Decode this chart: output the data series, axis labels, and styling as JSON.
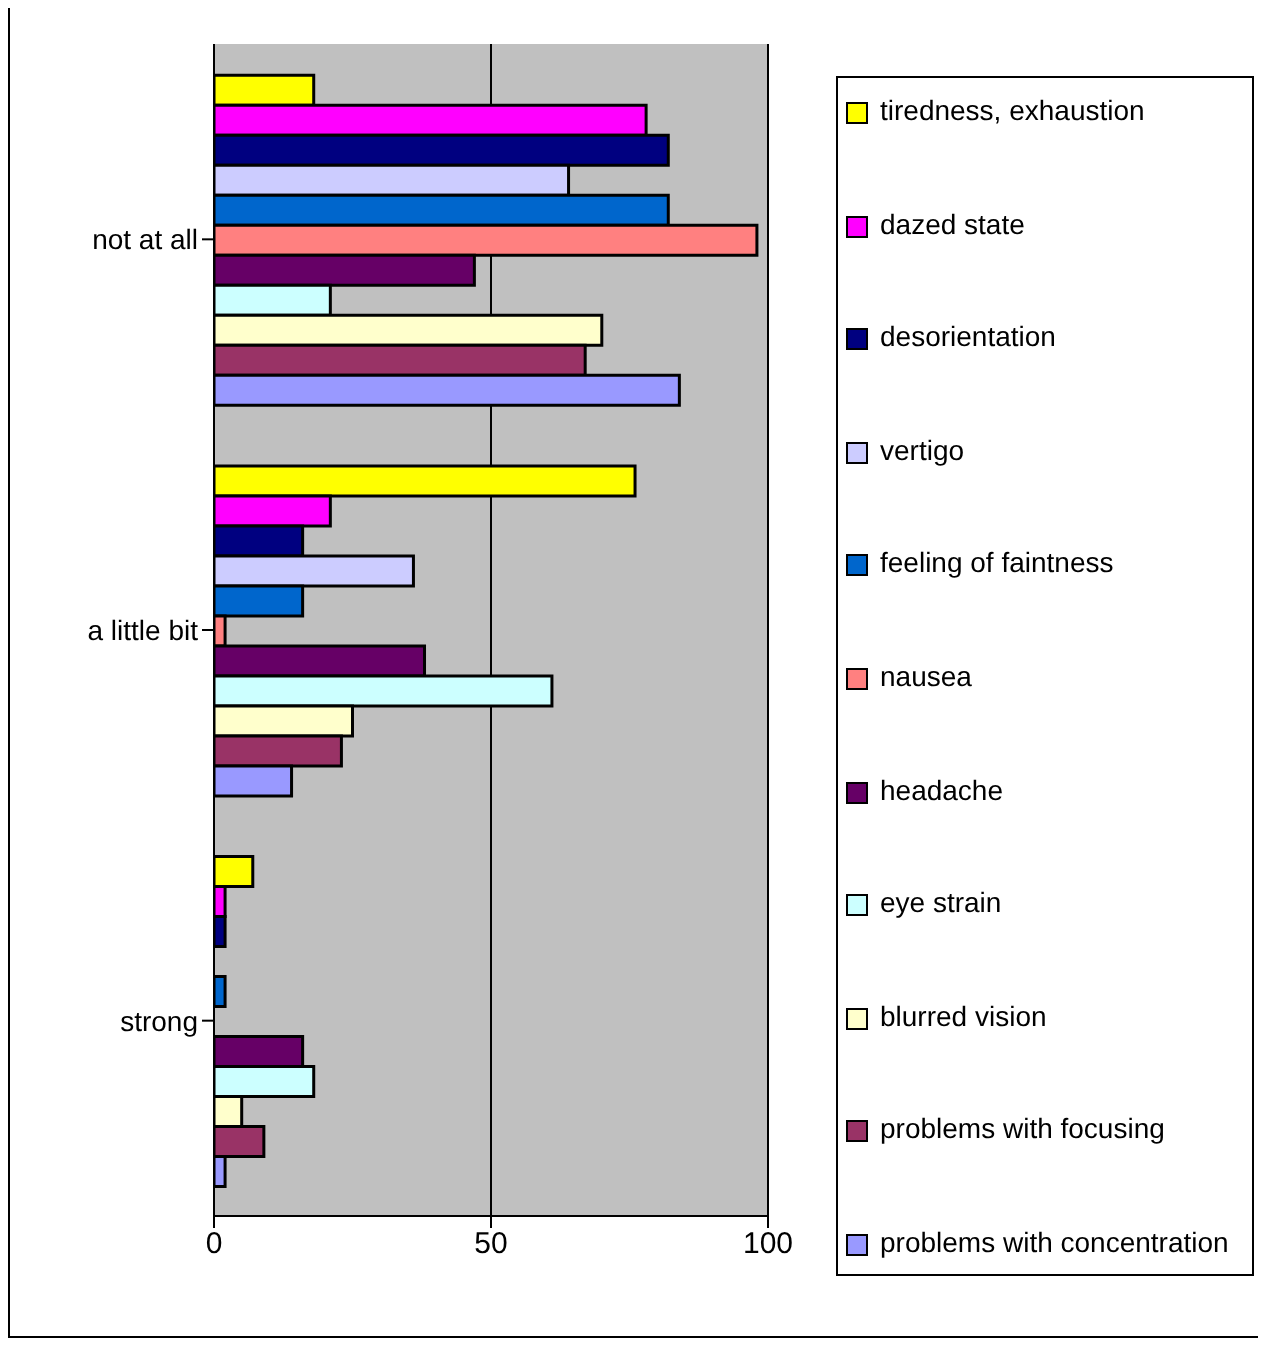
{
  "chart_data": {
    "type": "bar",
    "orientation": "horizontal",
    "categories": [
      "not at all",
      "a little bit",
      "strong"
    ],
    "series": [
      {
        "name": "tiredness, exhaustion",
        "color": "#ffff00",
        "values": [
          18,
          76,
          7
        ]
      },
      {
        "name": "dazed state",
        "color": "#ff00ff",
        "values": [
          78,
          21,
          2
        ]
      },
      {
        "name": "desorientation",
        "color": "#000080",
        "values": [
          82,
          16,
          2
        ]
      },
      {
        "name": "vertigo",
        "color": "#ccccff",
        "values": [
          64,
          36,
          0
        ]
      },
      {
        "name": "feeling of faintness",
        "color": "#0066cc",
        "values": [
          82,
          16,
          2
        ]
      },
      {
        "name": "nausea",
        "color": "#ff8080",
        "values": [
          98,
          2,
          0
        ]
      },
      {
        "name": "headache",
        "color": "#660066",
        "values": [
          47,
          38,
          16
        ]
      },
      {
        "name": "eye strain",
        "color": "#ccffff",
        "values": [
          21,
          61,
          18
        ]
      },
      {
        "name": "blurred vision",
        "color": "#ffffcc",
        "values": [
          70,
          25,
          5
        ]
      },
      {
        "name": "problems with focusing",
        "color": "#993366",
        "values": [
          67,
          23,
          9
        ]
      },
      {
        "name": "problems with concentration",
        "color": "#9999ff",
        "values": [
          84,
          14,
          2
        ]
      }
    ],
    "xlim": [
      0,
      100
    ],
    "xticks": [
      0,
      50,
      100
    ],
    "grid": "x",
    "legend": "right"
  }
}
